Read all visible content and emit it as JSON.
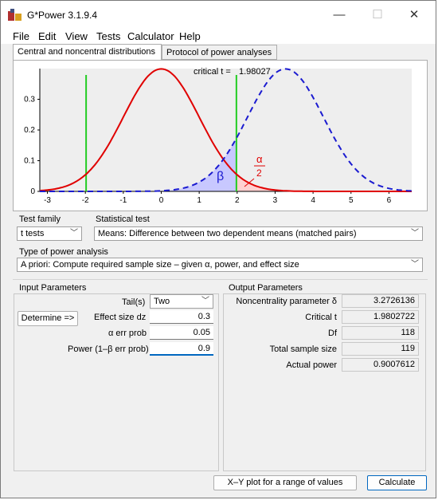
{
  "window": {
    "title": "G*Power 3.1.9.4",
    "controls": [
      "—",
      "☐",
      "✕"
    ]
  },
  "menu": [
    "File",
    "Edit",
    "View",
    "Tests",
    "Calculator",
    "Help"
  ],
  "tabs": [
    "Central and noncentral distributions",
    "Protocol of power analyses"
  ],
  "plot": {
    "critical_label": "critical t =",
    "critical_value": "1.98027",
    "beta_symbol": "β",
    "alpha_symbol": "α",
    "alpha_denominator": "2"
  },
  "chart_data": {
    "type": "line",
    "x_ticks": [
      "-3",
      "-2",
      "-1",
      "0",
      "1",
      "2",
      "3",
      "4",
      "5",
      "6"
    ],
    "y_ticks": [
      "0",
      "0.1",
      "0.2",
      "0.3"
    ],
    "xlim": [
      -3.2,
      6.6
    ],
    "ylim": [
      0,
      0.4
    ],
    "critical_t": 1.98027,
    "series": [
      {
        "distribution": "central t",
        "mean": 0,
        "color": "#e00000",
        "style": "solid"
      },
      {
        "distribution": "noncentral t",
        "mean": 3.2726136,
        "color": "#1b1bd0",
        "style": "dashed"
      }
    ],
    "critical_lines": [
      -1.98027,
      1.98027
    ],
    "critical_line_color": "#22cc22"
  },
  "test_family": {
    "label": "Test family",
    "value": "t tests"
  },
  "statistical_test": {
    "label": "Statistical test",
    "value": "Means: Difference between two dependent means (matched pairs)"
  },
  "analysis_type": {
    "label": "Type of power analysis",
    "value": "A priori: Compute required sample size – given α, power, and effect size"
  },
  "input": {
    "header": "Input Parameters",
    "tails_label": "Tail(s)",
    "tails_value": "Two",
    "determine_button": "Determine =>",
    "effect_label": "Effect size dz",
    "effect_value": "0.3",
    "alpha_label": "α err prob",
    "alpha_value": "0.05",
    "power_label": "Power (1–β err prob)",
    "power_value": "0.9"
  },
  "output": {
    "header": "Output Parameters",
    "rows": [
      {
        "label": "Noncentrality parameter δ",
        "value": "3.2726136"
      },
      {
        "label": "Critical t",
        "value": "1.9802722"
      },
      {
        "label": "Df",
        "value": "118"
      },
      {
        "label": "Total sample size",
        "value": "119"
      },
      {
        "label": "Actual power",
        "value": "0.9007612"
      }
    ]
  },
  "buttons": {
    "xy_plot": "X–Y plot for a range of values",
    "calculate": "Calculate"
  }
}
